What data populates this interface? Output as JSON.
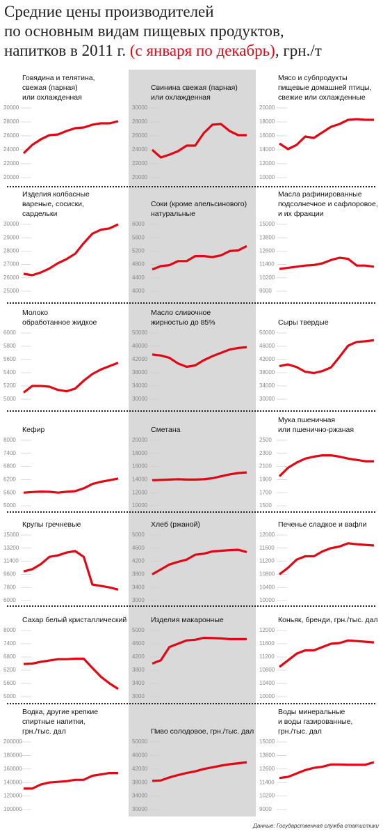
{
  "header": {
    "title": [
      "Средние цены производителей",
      "по основным видам пищевых продуктов,",
      "напитков в 2011 г."
    ],
    "title_highlight": "(с января по декабрь)",
    "title_unit": ", грн./т",
    "source": "Данные: Государственная служба статистики"
  },
  "chart_data": [
    {
      "type": "line",
      "title": [
        "Говядина и телятина,",
        "свежая (парная)",
        "или охлажденная"
      ],
      "values": [
        23500,
        24700,
        25500,
        26100,
        26200,
        26700,
        27100,
        27200,
        27600,
        27800,
        27800,
        28100
      ],
      "ylim": [
        20000,
        30000
      ],
      "yticks": [
        20000,
        22000,
        24000,
        26000,
        28000,
        30000
      ],
      "color": "#e30613"
    },
    {
      "type": "line",
      "title": [
        "Свинина свежая (парная)",
        "или охлажденная"
      ],
      "values": [
        24000,
        22900,
        23300,
        23800,
        24600,
        24600,
        26400,
        27600,
        27700,
        26700,
        26100,
        26100
      ],
      "ylim": [
        20000,
        30000
      ],
      "yticks": [
        20000,
        22000,
        24000,
        26000,
        28000,
        30000
      ],
      "color": "#e30613"
    },
    {
      "type": "line",
      "title": [
        "Мясо и субпродукты",
        "пищевые домашней птицы,",
        "свежие или охлажденные"
      ],
      "values": [
        14900,
        14100,
        14700,
        15900,
        15700,
        16500,
        17300,
        17700,
        18300,
        18400,
        18300,
        18300
      ],
      "ylim": [
        10000,
        20000
      ],
      "yticks": [
        10000,
        12000,
        14000,
        16000,
        18000,
        20000
      ],
      "color": "#e30613"
    },
    {
      "type": "line",
      "title": [
        "Изделия колбасные",
        "вареные, сосиски,",
        "сардельки"
      ],
      "values": [
        26300,
        26200,
        26400,
        26700,
        27100,
        27400,
        27800,
        28600,
        29300,
        29600,
        29700,
        30000
      ],
      "ylim": [
        25000,
        30000
      ],
      "yticks": [
        25000,
        26000,
        27000,
        28000,
        29000,
        30000
      ],
      "color": "#e30613"
    },
    {
      "type": "line",
      "title": [
        "Соки (кроме апельсинового)",
        "натуральные"
      ],
      "values": [
        4650,
        4750,
        4780,
        4900,
        4900,
        5050,
        5050,
        5020,
        5070,
        5200,
        5220,
        5350
      ],
      "ylim": [
        4000,
        6000
      ],
      "yticks": [
        4000,
        4400,
        4800,
        5200,
        5600,
        6000
      ],
      "color": "#e30613"
    },
    {
      "type": "line",
      "title": [
        "Масла рафинированные",
        "подсолнечное и сафлоровое,",
        "и их фракции"
      ],
      "values": [
        11000,
        11100,
        11200,
        11300,
        11350,
        11500,
        11800,
        12000,
        11900,
        11300,
        11300,
        11200
      ],
      "ylim": [
        9000,
        15000
      ],
      "yticks": [
        9000,
        10200,
        11400,
        12600,
        13800,
        15000
      ],
      "color": "#e30613"
    },
    {
      "type": "line",
      "title": [
        "Молоко",
        "обработанное жидкое"
      ],
      "values": [
        5100,
        5200,
        5200,
        5190,
        5140,
        5120,
        5160,
        5280,
        5380,
        5450,
        5500,
        5550
      ],
      "ylim": [
        5000,
        6000
      ],
      "yticks": [
        5000,
        5200,
        5400,
        5600,
        5800,
        6000
      ],
      "color": "#e30613"
    },
    {
      "type": "line",
      "title": [
        "Масло сливочное",
        "жирностью до 85%"
      ],
      "values": [
        43500,
        43200,
        42500,
        40800,
        39800,
        40200,
        41800,
        43000,
        44000,
        45000,
        45500,
        45700
      ],
      "ylim": [
        30000,
        50000
      ],
      "yticks": [
        30000,
        34000,
        38000,
        42000,
        46000,
        50000
      ],
      "color": "#e30613"
    },
    {
      "type": "line",
      "title": [
        "Сыры твердые"
      ],
      "values": [
        40000,
        40500,
        39700,
        38300,
        37900,
        38500,
        39600,
        42800,
        46200,
        47300,
        47500,
        47800
      ],
      "ylim": [
        30000,
        50000
      ],
      "yticks": [
        30000,
        34000,
        38000,
        42000,
        46000,
        50000
      ],
      "color": "#e30613"
    },
    {
      "type": "line",
      "title": [
        "Кефир"
      ],
      "values": [
        5600,
        5630,
        5650,
        5640,
        5600,
        5640,
        5670,
        5800,
        6000,
        6100,
        6170,
        6250
      ],
      "ylim": [
        5000,
        8000
      ],
      "yticks": [
        5000,
        5600,
        6200,
        6800,
        7400,
        8000
      ],
      "color": "#e30613"
    },
    {
      "type": "line",
      "title": [
        "Сметана"
      ],
      "values": [
        13900,
        13950,
        14000,
        14050,
        14000,
        14000,
        14050,
        14200,
        14500,
        14800,
        15000,
        15100
      ],
      "ylim": [
        10000,
        20000
      ],
      "yticks": [
        10000,
        12000,
        14000,
        16000,
        18000,
        20000
      ],
      "color": "#e30613"
    },
    {
      "type": "line",
      "title": [
        "Мука пшеничная",
        "или пшенично-ржаная"
      ],
      "values": [
        1950,
        2080,
        2160,
        2220,
        2250,
        2270,
        2270,
        2250,
        2220,
        2200,
        2180,
        2180
      ],
      "ylim": [
        1500,
        2500
      ],
      "yticks": [
        1500,
        1700,
        1900,
        2100,
        2300,
        2500
      ],
      "color": "#e30613"
    },
    {
      "type": "line",
      "title": [
        "Крупы гречневые"
      ],
      "values": [
        10000,
        10300,
        11000,
        12000,
        12200,
        12600,
        12800,
        12000,
        8200,
        8000,
        7800,
        7500
      ],
      "ylim": [
        6000,
        15000
      ],
      "yticks": [
        6000,
        7800,
        9600,
        11400,
        13200,
        15000
      ],
      "color": "#e30613"
    },
    {
      "type": "line",
      "title": [
        "Хлеб (ржаной)"
      ],
      "values": [
        3800,
        3950,
        4100,
        4180,
        4250,
        4400,
        4430,
        4500,
        4520,
        4540,
        4550,
        4480
      ],
      "ylim": [
        3000,
        5000
      ],
      "yticks": [
        3000,
        3400,
        3800,
        4200,
        4600,
        5000
      ],
      "color": "#e30613"
    },
    {
      "type": "line",
      "title": [
        "Печенье сладкое и вафли"
      ],
      "values": [
        10800,
        11000,
        11250,
        11350,
        11350,
        11500,
        11600,
        11650,
        11750,
        11720,
        11700,
        11680
      ],
      "ylim": [
        10000,
        12000
      ],
      "yticks": [
        10000,
        10400,
        10800,
        11200,
        11600,
        12000
      ],
      "color": "#e30613"
    },
    {
      "type": "line",
      "title": [
        "Сахар белый кристаллический"
      ],
      "values": [
        6480,
        6500,
        6580,
        6640,
        6700,
        6700,
        6720,
        6720,
        6300,
        5900,
        5600,
        5350
      ],
      "ylim": [
        5000,
        8000
      ],
      "yticks": [
        5000,
        5600,
        6200,
        6800,
        7400,
        8000
      ],
      "color": "#e30613"
    },
    {
      "type": "line",
      "title": [
        "Изделия макаронные"
      ],
      "values": [
        4000,
        4100,
        4500,
        4600,
        4700,
        4720,
        4780,
        4770,
        4760,
        4740,
        4740,
        4740
      ],
      "ylim": [
        3000,
        5000
      ],
      "yticks": [
        3000,
        3400,
        3800,
        4200,
        4600,
        5000
      ],
      "color": "#e30613"
    },
    {
      "type": "line",
      "title": [
        "Коньяк, бренди, грн./тыс. дал"
      ],
      "values": [
        10900,
        11100,
        11300,
        11400,
        11400,
        11500,
        11600,
        11620,
        11700,
        11680,
        11660,
        11640
      ],
      "ylim": [
        10000,
        12000
      ],
      "yticks": [
        10000,
        10400,
        10800,
        11200,
        11600,
        12000
      ],
      "color": "#e30613"
    },
    {
      "type": "line",
      "title": [
        "Водка, другие крепкие",
        "спиртные напитки,",
        "грн./тыс. дал"
      ],
      "values": [
        131000,
        131000,
        137000,
        140000,
        141000,
        142000,
        144000,
        144000,
        150000,
        152000,
        154000,
        154000
      ],
      "ylim": [
        100000,
        200000
      ],
      "yticks": [
        100000,
        120000,
        140000,
        160000,
        180000,
        200000
      ],
      "color": "#e30613"
    },
    {
      "type": "line",
      "title": [
        "Пиво солодовое, грн./тыс. дал"
      ],
      "values": [
        38500,
        38600,
        39500,
        40200,
        40800,
        41300,
        42000,
        42500,
        43000,
        43400,
        43700,
        44000
      ],
      "ylim": [
        30000,
        50000
      ],
      "yticks": [
        30000,
        34000,
        38000,
        42000,
        46000,
        50000
      ],
      "color": "#e30613"
    },
    {
      "type": "line",
      "title": [
        "Воды минеральные",
        "и воды газированные,",
        "грн./тыс. дал"
      ],
      "values": [
        11800,
        11900,
        12200,
        12500,
        12700,
        12800,
        13000,
        13000,
        12980,
        12980,
        12980,
        13200
      ],
      "ylim": [
        9000,
        15000
      ],
      "yticks": [
        9000,
        10200,
        11400,
        12600,
        13800,
        15000
      ],
      "color": "#e30613"
    }
  ]
}
